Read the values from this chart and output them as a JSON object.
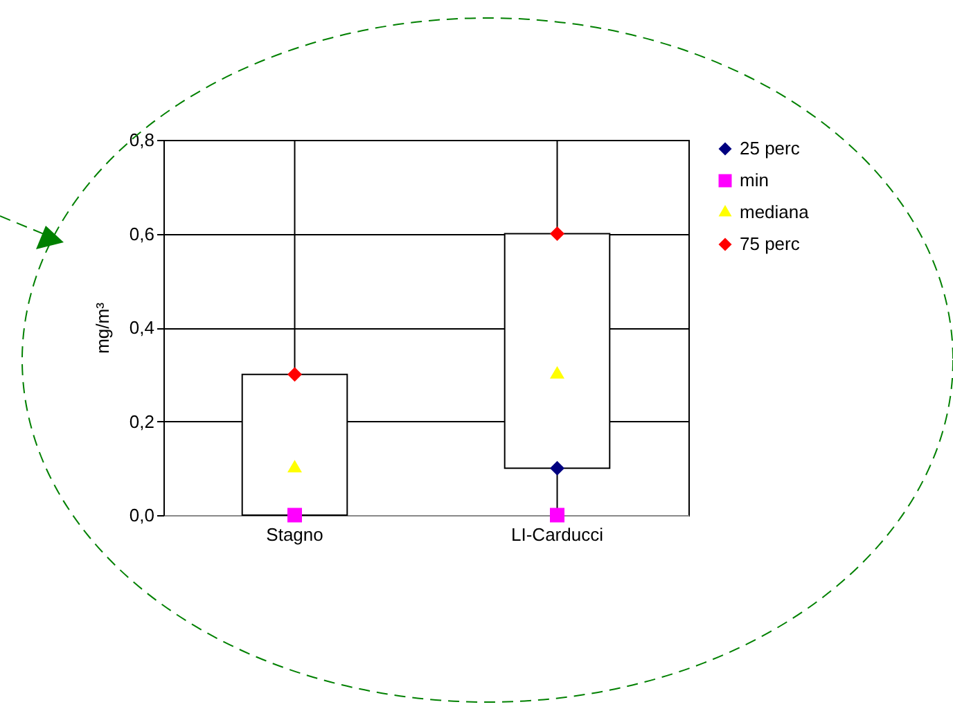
{
  "chart_data": {
    "type": "box",
    "ylabel": "mg/m³",
    "categories": [
      "Stagno",
      "LI-Carducci"
    ],
    "boxes": [
      {
        "low": 0,
        "q1": 0,
        "q3": 0.3,
        "high": 0.8
      },
      {
        "low": 0,
        "q1": 0.1,
        "q3": 0.6,
        "high": 0.8
      }
    ],
    "series": [
      {
        "name": "25 perc",
        "type": "scatter",
        "marker": "diamond",
        "color": "#000080",
        "values": [
          null,
          0.1
        ]
      },
      {
        "name": "min",
        "type": "scatter",
        "marker": "square",
        "color": "#ff00ff",
        "values": [
          0,
          0
        ]
      },
      {
        "name": "mediana",
        "type": "scatter",
        "marker": "triangle",
        "color": "#ffff00",
        "values": [
          0.1,
          0.3
        ]
      },
      {
        "name": "75 perc",
        "type": "scatter",
        "marker": "diamond",
        "color": "#ff0000",
        "values": [
          0.3,
          0.6
        ]
      }
    ],
    "ylim": [
      0,
      0.8
    ],
    "yticks": [
      {
        "value": 0,
        "label": "0,0"
      },
      {
        "value": 0.2,
        "label": "0,2"
      },
      {
        "value": 0.4,
        "label": "0,4"
      },
      {
        "value": 0.6,
        "label": "0,6"
      },
      {
        "value": 0.8,
        "label": "0,8"
      }
    ],
    "grid": "y",
    "legend": "right"
  }
}
